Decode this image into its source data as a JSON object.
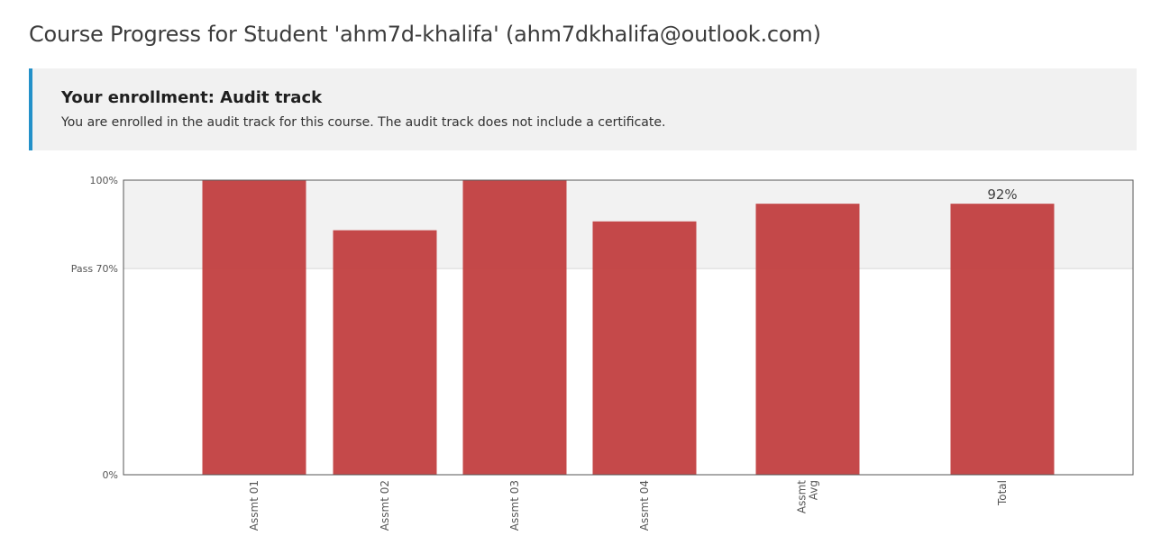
{
  "page": {
    "title": "Course Progress for Student 'ahm7d-khalifa' (ahm7dkhalifa@outlook.com)"
  },
  "enrollment": {
    "title": "Your enrollment: Audit track",
    "message": "You are enrolled in the audit track for this course. The audit track does not include a certificate.",
    "accent_color": "#2391c9"
  },
  "chart_data": {
    "type": "bar",
    "categories": [
      [
        "Assmt 01"
      ],
      [
        "Assmt 02"
      ],
      [
        "Assmt 03"
      ],
      [
        "Assmt 04"
      ],
      [
        "Assmt",
        "Avg"
      ],
      [
        "Total"
      ]
    ],
    "values": [
      100,
      83,
      100,
      86,
      92,
      92
    ],
    "ylim": [
      0,
      100
    ],
    "y_ticks": [
      {
        "value": 100,
        "label": "100%"
      },
      {
        "value": 70,
        "label": "Pass 70%"
      },
      {
        "value": 0,
        "label": "0%"
      }
    ],
    "pass_threshold": 70,
    "data_labels": [
      {
        "index": 5,
        "text": "92%"
      }
    ],
    "bar_color": "#c0393b",
    "pass_band_color": "#f2f2f2"
  }
}
